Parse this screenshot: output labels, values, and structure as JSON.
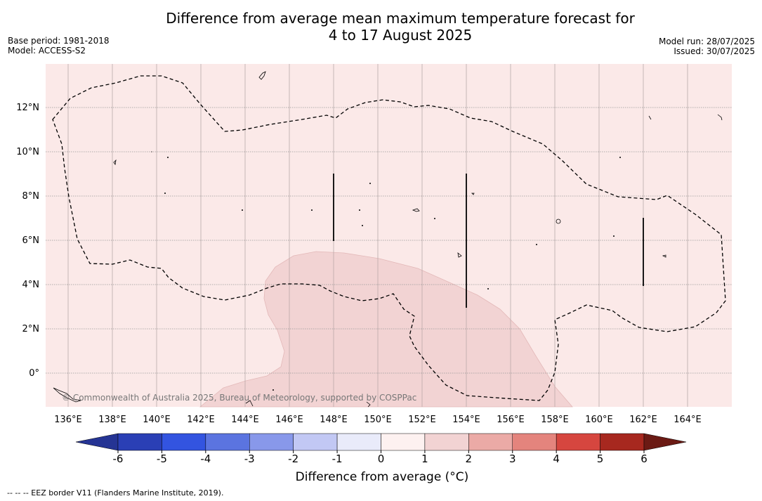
{
  "title": {
    "line1": "Difference from average mean maximum temperature forecast for",
    "line2": "4 to 17 August 2025"
  },
  "meta": {
    "base_period": "Base period: 1981-2018",
    "model": "Model: ACCESS-S2",
    "model_run": "Model run: 28/07/2025",
    "issued": "Issued: 30/07/2025"
  },
  "map": {
    "lon_labels": [
      "136°E",
      "138°E",
      "140°E",
      "142°E",
      "144°E",
      "146°E",
      "148°E",
      "150°E",
      "152°E",
      "154°E",
      "156°E",
      "158°E",
      "160°E",
      "162°E",
      "164°E"
    ],
    "lat_labels": [
      "12°N",
      "10°N",
      "8°N",
      "6°N",
      "4°N",
      "2°N",
      "0°"
    ],
    "copyright": "© Commonwealth of Australia 2025, Bureau of Meteorology, supported by COSPPac",
    "background_class_color": "#fbe9e8",
    "warm_region_color": "#f2d3d3"
  },
  "colorbar": {
    "tick_labels": [
      "-6",
      "-5",
      "-4",
      "-3",
      "-2",
      "-1",
      "0",
      "1",
      "2",
      "3",
      "4",
      "5",
      "6"
    ],
    "colors": [
      "#253494",
      "#2a3fb5",
      "#3354e0",
      "#5b74e0",
      "#8898ea",
      "#c2c8f4",
      "#e9ebfa",
      "#fdf1f0",
      "#f2d3d3",
      "#ebaaa6",
      "#e4847d",
      "#d6463f",
      "#a7281f",
      "#6b1a14"
    ],
    "label": "Difference from average (°C)"
  },
  "footnote": "--  --  -- EEZ border V11 (Flanders Marine Institute, 2019)."
}
